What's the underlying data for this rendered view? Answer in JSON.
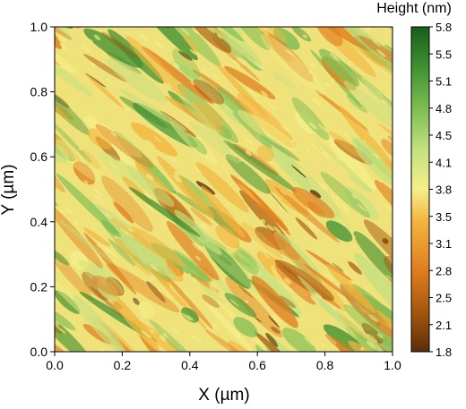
{
  "chart_data": {
    "type": "heatmap",
    "title": "",
    "xlabel": "X (µm)",
    "ylabel": "Y (µm)",
    "xlim": [
      0.0,
      1.0
    ],
    "ylim": [
      0.0,
      1.0
    ],
    "x_ticks": [
      "0.0",
      "0.2",
      "0.4",
      "0.6",
      "0.8",
      "1.0"
    ],
    "y_ticks": [
      "0.0",
      "0.2",
      "0.4",
      "0.6",
      "0.8",
      "1.0"
    ],
    "colorbar": {
      "title": "Height (nm)",
      "min": 1.8,
      "max": 5.8,
      "ticks": [
        "5.8",
        "5.5",
        "5.1",
        "4.8",
        "4.5",
        "4.1",
        "3.8",
        "3.5",
        "3.1",
        "2.8",
        "2.5",
        "2.1",
        "1.8"
      ]
    },
    "colormap": [
      "#5a2e08",
      "#a5560e",
      "#e07d1f",
      "#f2b43e",
      "#f5ef8a",
      "#c6e080",
      "#7cbd52",
      "#3d8f30",
      "#1a5e1a"
    ],
    "grid": false,
    "legend": "none"
  }
}
